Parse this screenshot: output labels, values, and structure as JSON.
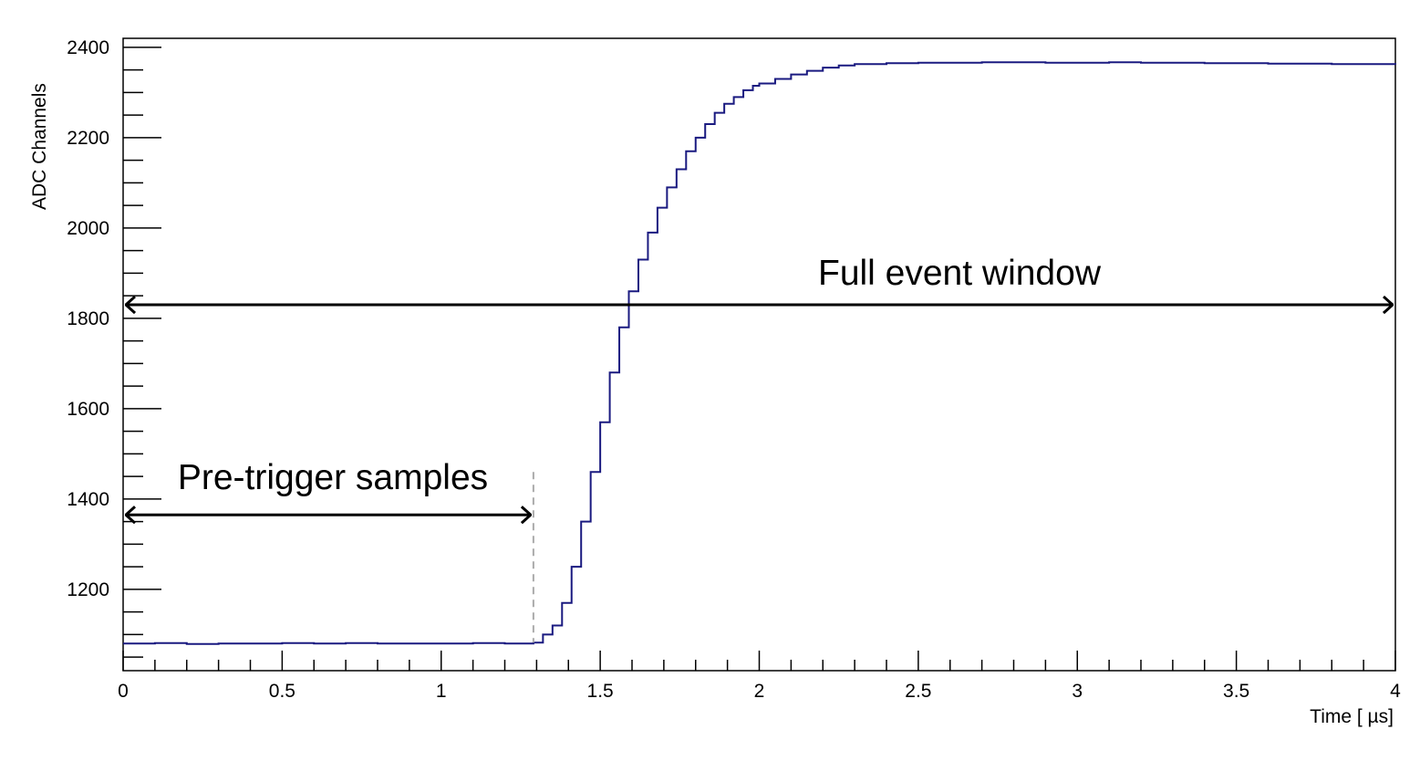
{
  "chart_data": {
    "type": "line",
    "title": "",
    "xlabel": "Time [ µs]",
    "ylabel": "ADC Channels",
    "xlim": [
      0,
      4
    ],
    "ylim": [
      1020,
      2420
    ],
    "x_ticks": [
      "0",
      "0.5",
      "1",
      "1.5",
      "2",
      "2.5",
      "3",
      "3.5",
      "4"
    ],
    "y_ticks": [
      "1200",
      "1400",
      "1600",
      "1800",
      "2000",
      "2200",
      "2400"
    ],
    "grid": false,
    "legend": "none",
    "colors": {
      "waveform": "#1a1a80",
      "annotation": "#000000",
      "trigger_line": "#aaaaaa"
    },
    "series": [
      {
        "style": "step",
        "x": [
          0,
          0.1,
          0.2,
          0.3,
          0.4,
          0.5,
          0.6,
          0.7,
          0.8,
          0.9,
          1.0,
          1.1,
          1.2,
          1.29,
          1.32,
          1.35,
          1.38,
          1.41,
          1.44,
          1.47,
          1.5,
          1.53,
          1.56,
          1.59,
          1.62,
          1.65,
          1.68,
          1.71,
          1.74,
          1.77,
          1.8,
          1.83,
          1.86,
          1.89,
          1.92,
          1.95,
          1.98,
          2.0,
          2.05,
          2.1,
          2.15,
          2.2,
          2.25,
          2.3,
          2.4,
          2.5,
          2.6,
          2.7,
          2.8,
          2.9,
          3.0,
          3.1,
          3.2,
          3.3,
          3.4,
          3.5,
          3.6,
          3.7,
          3.8,
          3.9,
          4.0
        ],
        "y": [
          1080,
          1081,
          1079,
          1080,
          1080,
          1081,
          1080,
          1081,
          1080,
          1080,
          1080,
          1081,
          1080,
          1082,
          1100,
          1120,
          1170,
          1250,
          1350,
          1460,
          1570,
          1680,
          1780,
          1860,
          1930,
          1990,
          2045,
          2090,
          2130,
          2170,
          2200,
          2230,
          2255,
          2275,
          2290,
          2305,
          2315,
          2320,
          2330,
          2340,
          2348,
          2355,
          2360,
          2363,
          2365,
          2366,
          2366,
          2367,
          2367,
          2366,
          2366,
          2367,
          2366,
          2366,
          2365,
          2365,
          2364,
          2364,
          2363,
          2363,
          2362
        ]
      }
    ],
    "annotations": [
      {
        "text": "Full event window",
        "x_start": 0,
        "x_end": 4,
        "y": 1830
      },
      {
        "text": "Pre-trigger samples",
        "x_start": 0,
        "x_end": 1.29,
        "y": 1365
      }
    ],
    "trigger_marker_x": 1.29
  }
}
